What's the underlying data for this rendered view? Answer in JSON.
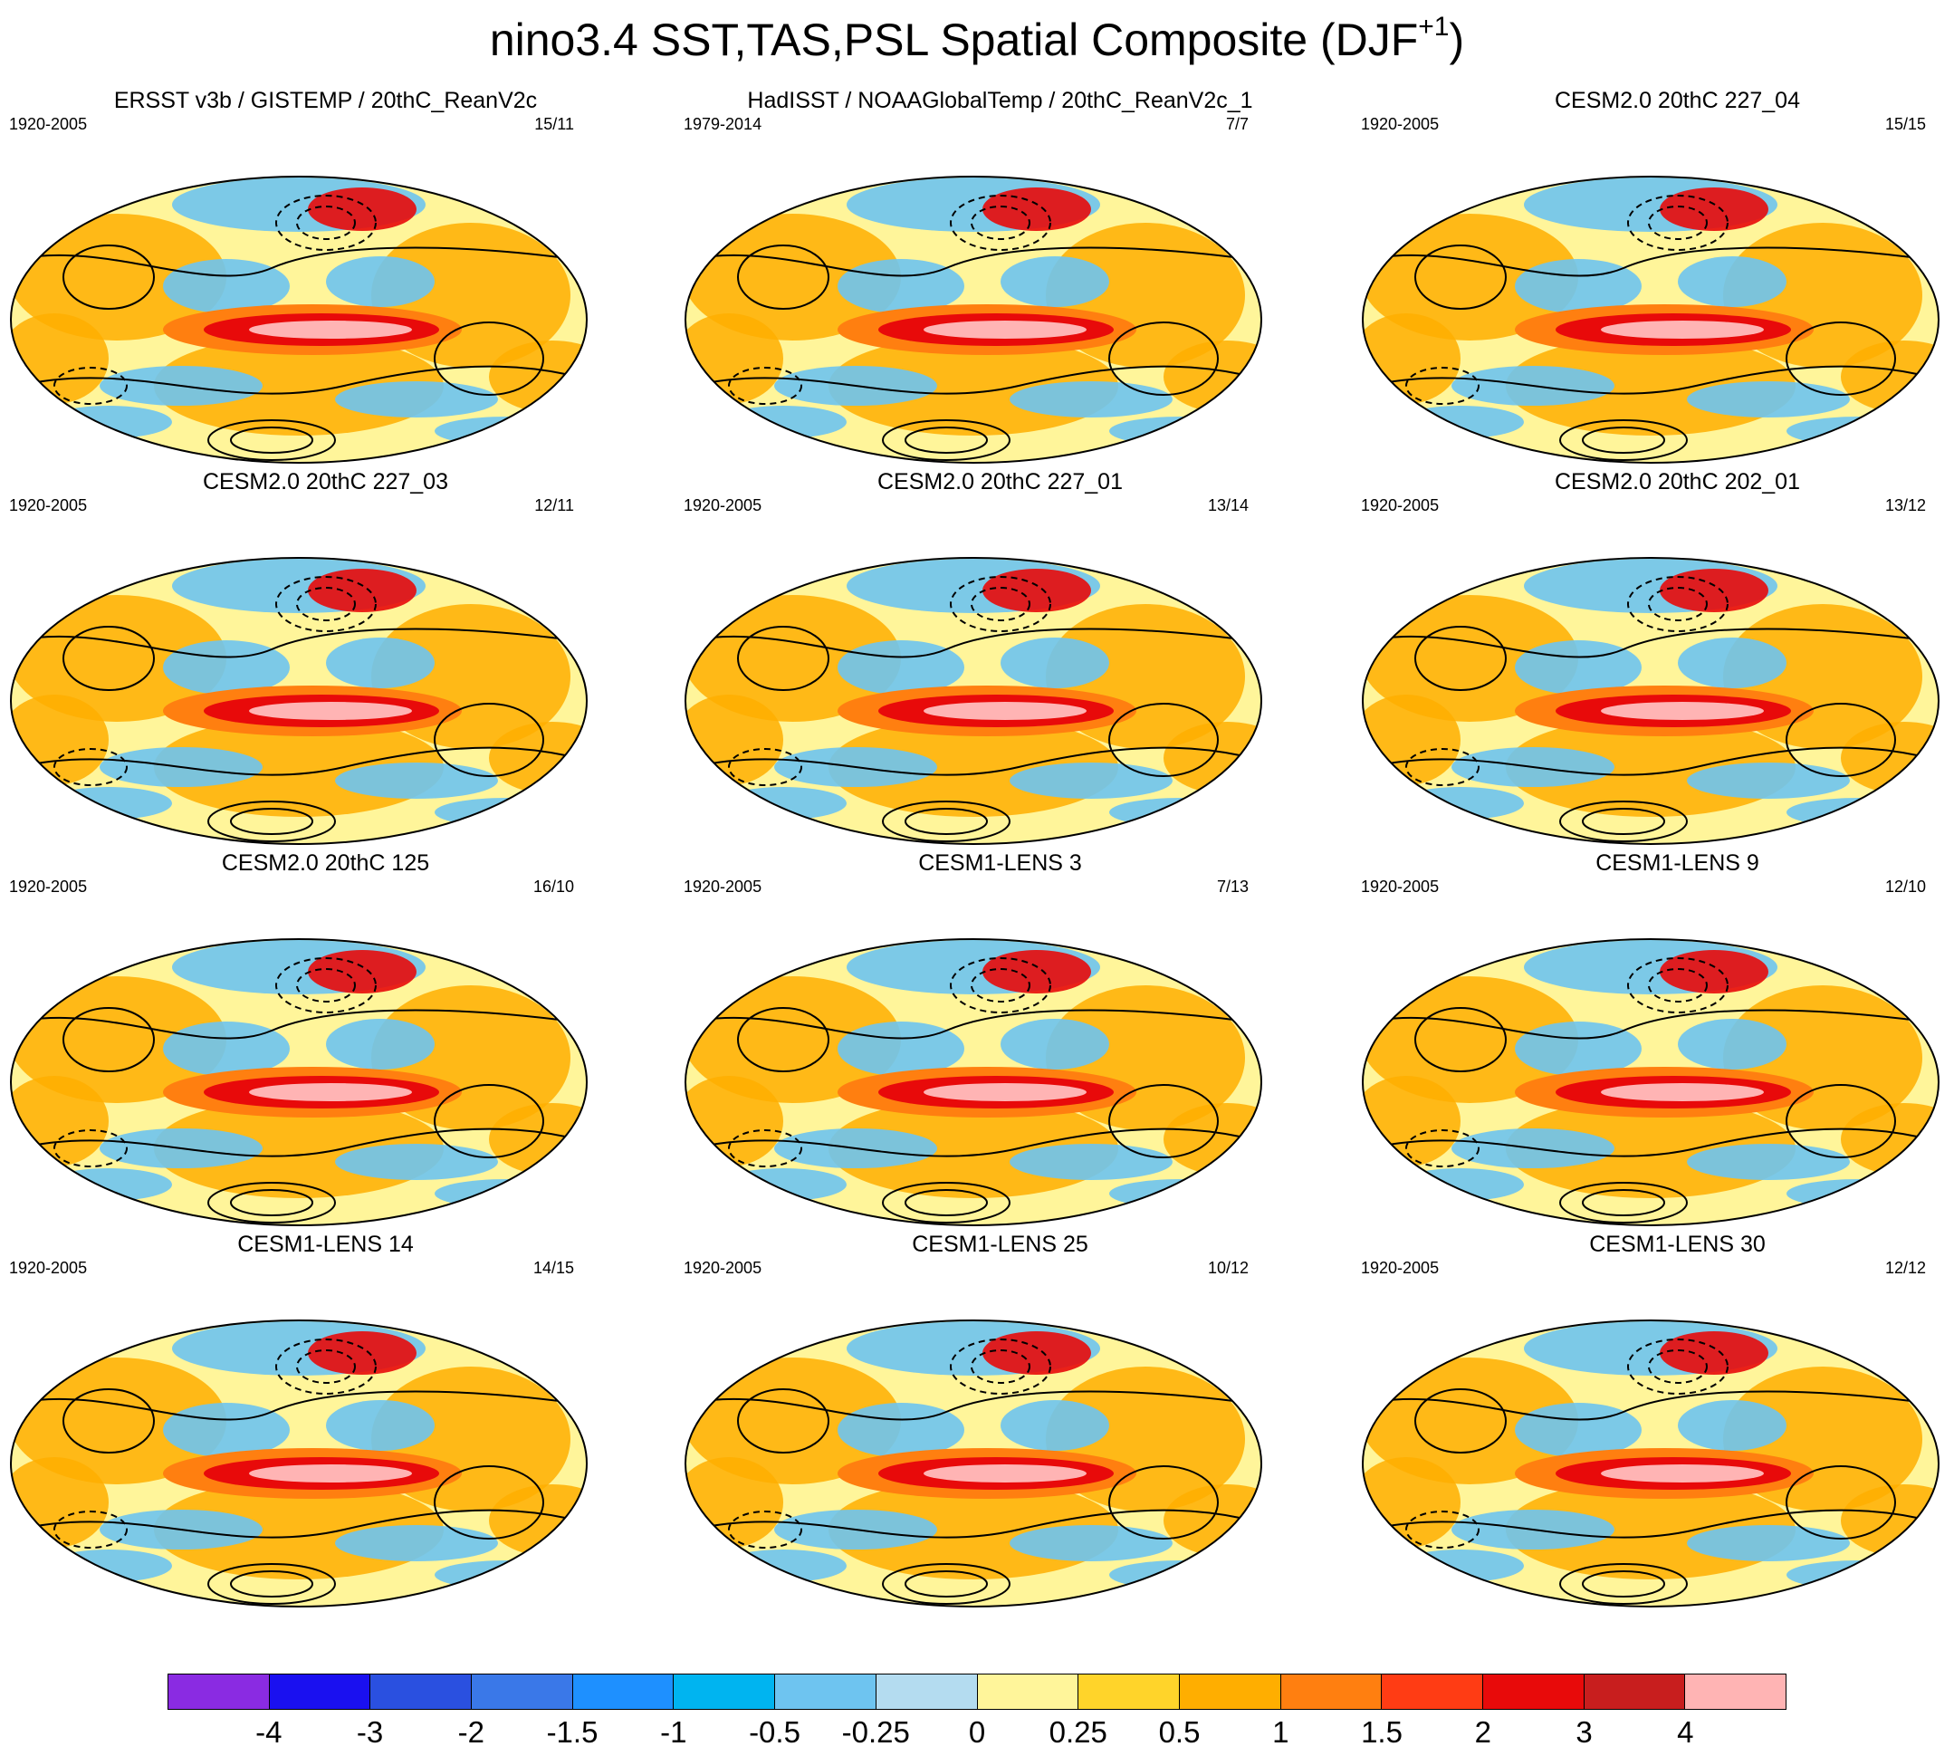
{
  "figure": {
    "title": "nino3.4 SST,TAS,PSL Spatial Composite (DJF",
    "title_sup": "+1",
    "title_end": ")"
  },
  "panels": [
    {
      "title": "ERSST v3b / GISTEMP / 20thC_ReanV2c",
      "period": "1920-2005",
      "count": "15/11"
    },
    {
      "title": "HadISST / NOAAGlobalTemp / 20thC_ReanV2c_1",
      "period": "1979-2014",
      "count": "7/7"
    },
    {
      "title": "CESM2.0 20thC 227_04",
      "period": "1920-2005",
      "count": "15/15"
    },
    {
      "title": "CESM2.0 20thC 227_03",
      "period": "1920-2005",
      "count": "12/11"
    },
    {
      "title": "CESM2.0 20thC 227_01",
      "period": "1920-2005",
      "count": "13/14"
    },
    {
      "title": "CESM2.0 20thC 202_01",
      "period": "1920-2005",
      "count": "13/12"
    },
    {
      "title": "CESM2.0 20thC 125",
      "period": "1920-2005",
      "count": "16/10"
    },
    {
      "title": "CESM1-LENS 3",
      "period": "1920-2005",
      "count": "7/13"
    },
    {
      "title": "CESM1-LENS 9",
      "period": "1920-2005",
      "count": "12/10"
    },
    {
      "title": "CESM1-LENS 14",
      "period": "1920-2005",
      "count": "14/15"
    },
    {
      "title": "CESM1-LENS 25",
      "period": "1920-2005",
      "count": "10/12"
    },
    {
      "title": "CESM1-LENS 30",
      "period": "1920-2005",
      "count": "12/12"
    }
  ],
  "colorbar": {
    "colors": [
      "#8a2be2",
      "#1a10f0",
      "#2a50e0",
      "#3a78e8",
      "#1e90ff",
      "#00b4f0",
      "#6ec4f0",
      "#b4dcf0",
      "#fff59a",
      "#ffd42a",
      "#ffae00",
      "#ff7f10",
      "#ff3c14",
      "#e80a0a",
      "#c81e1e",
      "#ffb4b4"
    ],
    "labels": [
      "-4",
      "-3",
      "-2",
      "-1.5",
      "-1",
      "-0.5",
      "-0.25",
      "0",
      "0.25",
      "0.5",
      "1",
      "1.5",
      "2",
      "3",
      "4"
    ]
  }
}
